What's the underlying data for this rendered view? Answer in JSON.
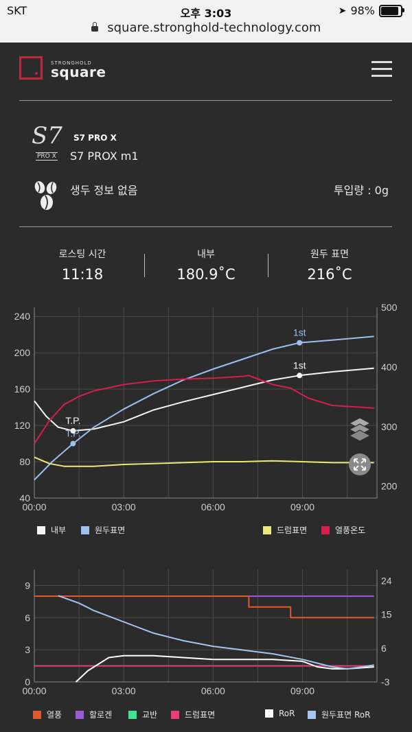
{
  "status_bar": {
    "carrier": "SKT",
    "time": "오후 3:03",
    "battery": "98%",
    "battery_level": 0.98,
    "url": "square.stronghold-technology.com"
  },
  "header": {
    "logo_small": "STRONGHOLD",
    "logo_big": "square"
  },
  "device": {
    "logo_text": "S7",
    "logo_sub": "PRO X",
    "model": "S7 PRO X",
    "name": "S7 PROX m1"
  },
  "bean": {
    "info": "생두 정보 없음",
    "input_amount": "투입량 : 0g"
  },
  "stats": [
    {
      "label": "로스팅 시간",
      "value": "11:18"
    },
    {
      "label": "내부",
      "value": "180.9˚C"
    },
    {
      "label": "원두 표면",
      "value": "216˚C"
    }
  ],
  "colors": {
    "inner": "#f5f5f5",
    "bean_surface": "#9dbff0",
    "drum_surface": "#ece87a",
    "hot_air": "#d81e4e",
    "heat": "#e2572b",
    "halogen": "#9b59d4",
    "stir": "#3ee48f",
    "drum_surface2": "#e83e78",
    "ror": "#ffffff",
    "bean_ror": "#a6c4f2",
    "brand": "#c2263a"
  },
  "chart_data": [
    {
      "type": "line",
      "x_ticks": [
        "00:00",
        "03:00",
        "06:00",
        "09:00"
      ],
      "y_ticks_left": [
        "240",
        "200",
        "160",
        "120",
        "80",
        "40"
      ],
      "y_ticks_right": [
        "500",
        "400",
        "300",
        "200"
      ],
      "ylim_left": [
        40,
        250
      ],
      "ylim_right": [
        180,
        500
      ],
      "xlim_minutes": [
        0,
        11.5
      ],
      "annotations": [
        {
          "text": "T.P.",
          "series": "원두표면",
          "x": 1.3,
          "y": 100
        },
        {
          "text": "T.P.",
          "series": "내부",
          "x": 1.3,
          "y": 114
        },
        {
          "text": "1st",
          "series": "원두표면",
          "x": 8.9,
          "y": 211
        },
        {
          "text": "1st",
          "series": "내부",
          "x": 8.9,
          "y": 175
        }
      ],
      "series": [
        {
          "name": "내부",
          "color": "#f5f5f5",
          "axis": "left",
          "points": [
            [
              0,
              147
            ],
            [
              0.4,
              130
            ],
            [
              0.8,
              118
            ],
            [
              1.3,
              114
            ],
            [
              2,
              116
            ],
            [
              3,
              124
            ],
            [
              4,
              137
            ],
            [
              5,
              146
            ],
            [
              6,
              154
            ],
            [
              7,
              162
            ],
            [
              8,
              170
            ],
            [
              8.9,
              175
            ],
            [
              10,
              179
            ],
            [
              11.4,
              183
            ]
          ]
        },
        {
          "name": "원두표면",
          "color": "#9dbff0",
          "axis": "left",
          "points": [
            [
              0,
              60
            ],
            [
              0.6,
              80
            ],
            [
              1.3,
              100
            ],
            [
              2,
              118
            ],
            [
              3,
              138
            ],
            [
              4,
              155
            ],
            [
              5,
              170
            ],
            [
              6,
              182
            ],
            [
              7,
              193
            ],
            [
              8,
              204
            ],
            [
              8.9,
              211
            ],
            [
              10,
              214
            ],
            [
              11.4,
              218
            ]
          ]
        },
        {
          "name": "드럼표면",
          "color": "#ece87a",
          "axis": "left",
          "points": [
            [
              0,
              85
            ],
            [
              0.5,
              78
            ],
            [
              1,
              75
            ],
            [
              2,
              75
            ],
            [
              3,
              77
            ],
            [
              4,
              78
            ],
            [
              5,
              79
            ],
            [
              6,
              80
            ],
            [
              7,
              80
            ],
            [
              8,
              81
            ],
            [
              9,
              80
            ],
            [
              10,
              79
            ],
            [
              11.4,
              79
            ]
          ]
        },
        {
          "name": "열풍온도",
          "color": "#d81e4e",
          "axis": "left",
          "points": [
            [
              0,
              100
            ],
            [
              0.5,
              125
            ],
            [
              1,
              143
            ],
            [
              1.5,
              152
            ],
            [
              2,
              158
            ],
            [
              3,
              165
            ],
            [
              4,
              169
            ],
            [
              5,
              171
            ],
            [
              6,
              172
            ],
            [
              7,
              174
            ],
            [
              7.2,
              175
            ],
            [
              8,
              165
            ],
            [
              8.6,
              161
            ],
            [
              9.2,
              150
            ],
            [
              10,
              142
            ],
            [
              11.4,
              139
            ]
          ]
        }
      ],
      "legend": [
        "내부",
        "원두표면",
        "드럼표면",
        "열풍온도"
      ]
    },
    {
      "type": "line",
      "x_ticks": [
        "00:00",
        "03:00",
        "06:00",
        "09:00"
      ],
      "y_ticks_left": [
        "9",
        "6",
        "3",
        "0"
      ],
      "y_ticks_right": [
        "24",
        "15",
        "6",
        "-3"
      ],
      "ylim_left": [
        0,
        10.5
      ],
      "ylim_right": [
        -3,
        27
      ],
      "xlim_minutes": [
        0,
        11.5
      ],
      "series": [
        {
          "name": "열풍",
          "color": "#e2572b",
          "axis": "left",
          "step": true,
          "points": [
            [
              0,
              8
            ],
            [
              7.2,
              8
            ],
            [
              7.2,
              7
            ],
            [
              8.6,
              7
            ],
            [
              8.6,
              6
            ],
            [
              11.4,
              6
            ]
          ]
        },
        {
          "name": "할로겐",
          "color": "#9b59d4",
          "axis": "left",
          "step": true,
          "points": [
            [
              7.2,
              8
            ],
            [
              11.4,
              8
            ]
          ]
        },
        {
          "name": "교반",
          "color": "#3ee48f",
          "axis": "left",
          "points": []
        },
        {
          "name": "드럼표면",
          "color": "#e83e78",
          "axis": "left",
          "points": [
            [
              0,
              1.5
            ],
            [
              11.4,
              1.5
            ]
          ]
        },
        {
          "name": "RoR",
          "color": "#ffffff",
          "axis": "right",
          "points": [
            [
              1.4,
              -3
            ],
            [
              1.8,
              0
            ],
            [
              2.5,
              3.5
            ],
            [
              3,
              4
            ],
            [
              4,
              4
            ],
            [
              5,
              3.5
            ],
            [
              6,
              3
            ],
            [
              7,
              3
            ],
            [
              8,
              3
            ],
            [
              9,
              2.5
            ],
            [
              9.5,
              1
            ],
            [
              10,
              0.5
            ],
            [
              10.5,
              0.5
            ],
            [
              11.4,
              1
            ]
          ]
        },
        {
          "name": "원두표면 RoR",
          "color": "#a6c4f2",
          "axis": "right",
          "points": [
            [
              0.8,
              20
            ],
            [
              1.5,
              18
            ],
            [
              2,
              16
            ],
            [
              3,
              13
            ],
            [
              4,
              10
            ],
            [
              5,
              8
            ],
            [
              6,
              6.5
            ],
            [
              7,
              5.5
            ],
            [
              8,
              4.5
            ],
            [
              9,
              3
            ],
            [
              10,
              1
            ],
            [
              10.5,
              0.5
            ],
            [
              11,
              1
            ],
            [
              11.4,
              1.5
            ]
          ]
        }
      ],
      "legend": [
        "열풍",
        "할로겐",
        "교반",
        "드럼표면",
        "RoR",
        "원두표면 RoR"
      ]
    }
  ]
}
